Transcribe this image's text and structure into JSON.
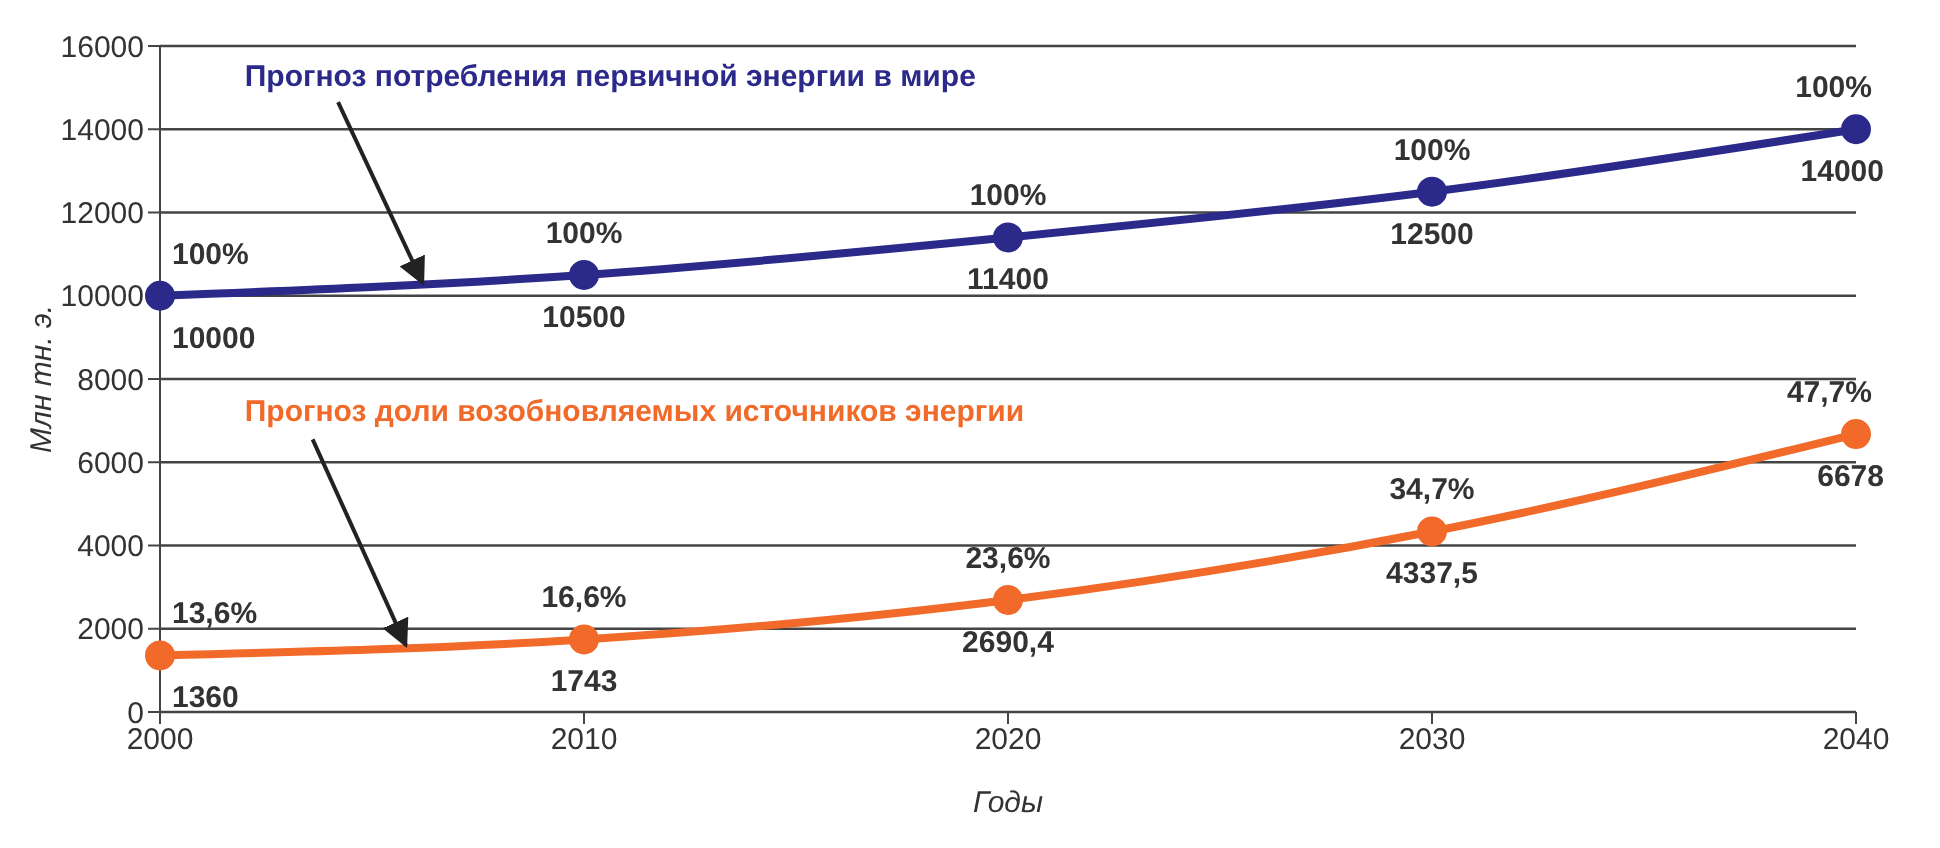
{
  "chart_data": {
    "type": "line",
    "ylabel": "Млн тн. э.",
    "xlabel": "Годы",
    "x": [
      2000,
      2010,
      2020,
      2030,
      2040
    ],
    "series": [
      {
        "name": "Прогноз потребления первичной энергии в мире",
        "color": "#2b2a8a",
        "values": [
          10000,
          10500,
          11400,
          12500,
          14000
        ],
        "value_labels": [
          "10000",
          "10500",
          "11400",
          "12500",
          "14000"
        ]
      },
      {
        "name": "Прогноз доли возобновляемых источников энергии",
        "color": "#f26a2a",
        "values": [
          1360,
          1743,
          2690.4,
          4337.5,
          6678
        ],
        "value_labels": [
          "1360",
          "1743",
          "2690,4",
          "4337,5",
          "6678"
        ]
      }
    ],
    "annotations": [
      {
        "text": "100%",
        "x": 2000,
        "y": 10000
      },
      {
        "text": "100%",
        "x": 2010,
        "y": 10500
      },
      {
        "text": "100%",
        "x": 2020,
        "y": 11400
      },
      {
        "text": "100%",
        "x": 2030,
        "y": 12500
      },
      {
        "text": "100%",
        "x": 2040,
        "y": 14000
      },
      {
        "text": "13,6%",
        "x": 2000,
        "y": 1360
      },
      {
        "text": "16,6%",
        "x": 2010,
        "y": 1743
      },
      {
        "text": "23,6%",
        "x": 2020,
        "y": 2690.4
      },
      {
        "text": "34,7%",
        "x": 2030,
        "y": 4337.5
      },
      {
        "text": "47,7%",
        "x": 2040,
        "y": 6678
      }
    ],
    "xlim": [
      2000,
      2040
    ],
    "xticks": [
      2000,
      2010,
      2020,
      2030,
      2040
    ],
    "ylim": [
      0,
      16000
    ],
    "yticks": [
      0,
      2000,
      4000,
      6000,
      8000,
      10000,
      12000,
      14000,
      16000
    ],
    "grid": "y",
    "marker": "circle",
    "line_style": "solid",
    "legend": false
  }
}
